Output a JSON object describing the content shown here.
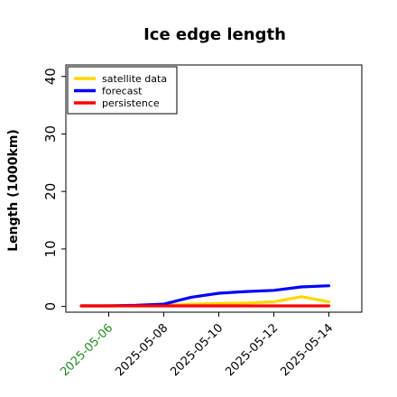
{
  "chart_data": {
    "type": "line",
    "title": "Ice edge length",
    "xlabel": "",
    "ylabel": "Length (1000km)",
    "x": [
      "2025-05-05",
      "2025-05-06",
      "2025-05-07",
      "2025-05-08",
      "2025-05-09",
      "2025-05-10",
      "2025-05-11",
      "2025-05-12",
      "2025-05-13",
      "2025-05-14"
    ],
    "xticks": [
      "2025-05-06",
      "2025-05-08",
      "2025-05-10",
      "2025-05-12",
      "2025-05-14"
    ],
    "highlighted_xtick": "2025-05-06",
    "highlight_color": "#228b22",
    "ylim": [
      -1,
      42
    ],
    "yticks": [
      0,
      10,
      20,
      30,
      40
    ],
    "grid": false,
    "legend_position": "top-left",
    "series": [
      {
        "name": "satellite data",
        "color": "#ffd700",
        "values": [
          0.1,
          0.1,
          0.1,
          0.2,
          0.4,
          0.5,
          0.6,
          0.8,
          1.7,
          0.8
        ]
      },
      {
        "name": "forecast",
        "color": "#0000ff",
        "values": [
          0.1,
          0.1,
          0.2,
          0.4,
          1.6,
          2.3,
          2.6,
          2.8,
          3.4,
          3.6
        ]
      },
      {
        "name": "persistence",
        "color": "#ff0000",
        "values": [
          0.1,
          0.1,
          0.1,
          0.1,
          0.1,
          0.1,
          0.1,
          0.1,
          0.1,
          0.1
        ]
      }
    ]
  }
}
